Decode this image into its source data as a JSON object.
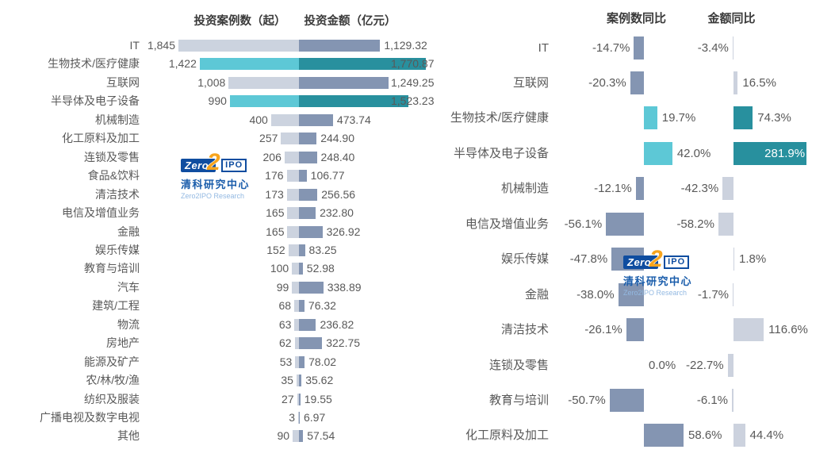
{
  "chart_data": [
    {
      "type": "bar",
      "id": "investment-by-industry-2022",
      "orientation": "horizontal",
      "legend_position": "top",
      "grid": false,
      "categories": [
        "IT",
        "生物技术/医疗健康",
        "互联网",
        "半导体及电子设备",
        "机械制造",
        "化工原料及加工",
        "连锁及零售",
        "食品&饮料",
        "清洁技术",
        "电信及增值业务",
        "金融",
        "娱乐传媒",
        "教育与培训",
        "汽车",
        "建筑/工程",
        "物流",
        "房地产",
        "能源及矿产",
        "农/林/牧/渔",
        "纺织及服装",
        "广播电视及数字电视",
        "其他"
      ],
      "series": [
        {
          "name": "投资案例数（起）",
          "values": [
            1845,
            1422,
            1008,
            990,
            400,
            257,
            206,
            176,
            173,
            165,
            165,
            152,
            100,
            99,
            68,
            63,
            62,
            53,
            35,
            27,
            3,
            90
          ]
        },
        {
          "name": "投资金额（亿元）",
          "values": [
            1129.32,
            1770.87,
            1249.25,
            1523.23,
            473.74,
            244.9,
            248.4,
            106.77,
            256.56,
            232.8,
            326.92,
            83.25,
            52.98,
            338.89,
            76.32,
            236.82,
            322.75,
            78.02,
            35.62,
            19.55,
            6.97,
            57.54
          ]
        }
      ],
      "highlighted_categories": [
        "生物技术/医疗健康",
        "半导体及电子设备"
      ],
      "value_axis_range": [
        0,
        1845
      ]
    },
    {
      "type": "bar",
      "id": "yoy-change-by-industry",
      "orientation": "horizontal",
      "legend_position": "top",
      "grid": false,
      "categories": [
        "IT",
        "互联网",
        "生物技术/医疗健康",
        "半导体及电子设备",
        "机械制造",
        "电信及增值业务",
        "娱乐传媒",
        "金融",
        "清洁技术",
        "连锁及零售",
        "教育与培训",
        "化工原料及加工"
      ],
      "series": [
        {
          "name": "案例数同比",
          "values": [
            -14.7,
            -20.3,
            19.7,
            42.0,
            -12.1,
            -56.1,
            -47.8,
            -38.0,
            -26.1,
            0.0,
            -50.7,
            58.6
          ]
        },
        {
          "name": "金额同比",
          "values": [
            -3.4,
            16.5,
            74.3,
            281.9,
            -42.3,
            -58.2,
            1.8,
            -1.7,
            116.6,
            -22.7,
            -6.1,
            44.4
          ]
        }
      ],
      "highlighted_categories": [
        "生物技术/医疗健康",
        "半导体及电子设备"
      ],
      "value_unit": "%"
    }
  ],
  "watermark": {
    "brand_zero": "Zero",
    "brand_two": "2",
    "brand_ipo": "IPO",
    "name_cn": "清科研究中心",
    "name_en": "Zero2IPO Research"
  },
  "colors": {
    "case_bar_normal": "#ccd3df",
    "case_bar_highlight": "#5dc8d6",
    "amount_bar_normal": "#8495b2",
    "amount_bar_highlight": "#28909e",
    "yoy_case_bar_normal": "#8495b2",
    "yoy_amount_bar_normal": "#ccd2de",
    "label_text": "#595959",
    "header_text": "#3a3a3a",
    "logo_blue": "#0f4da0",
    "logo_orange": "#f7a41d",
    "logo_light_blue": "#93b9e2"
  }
}
